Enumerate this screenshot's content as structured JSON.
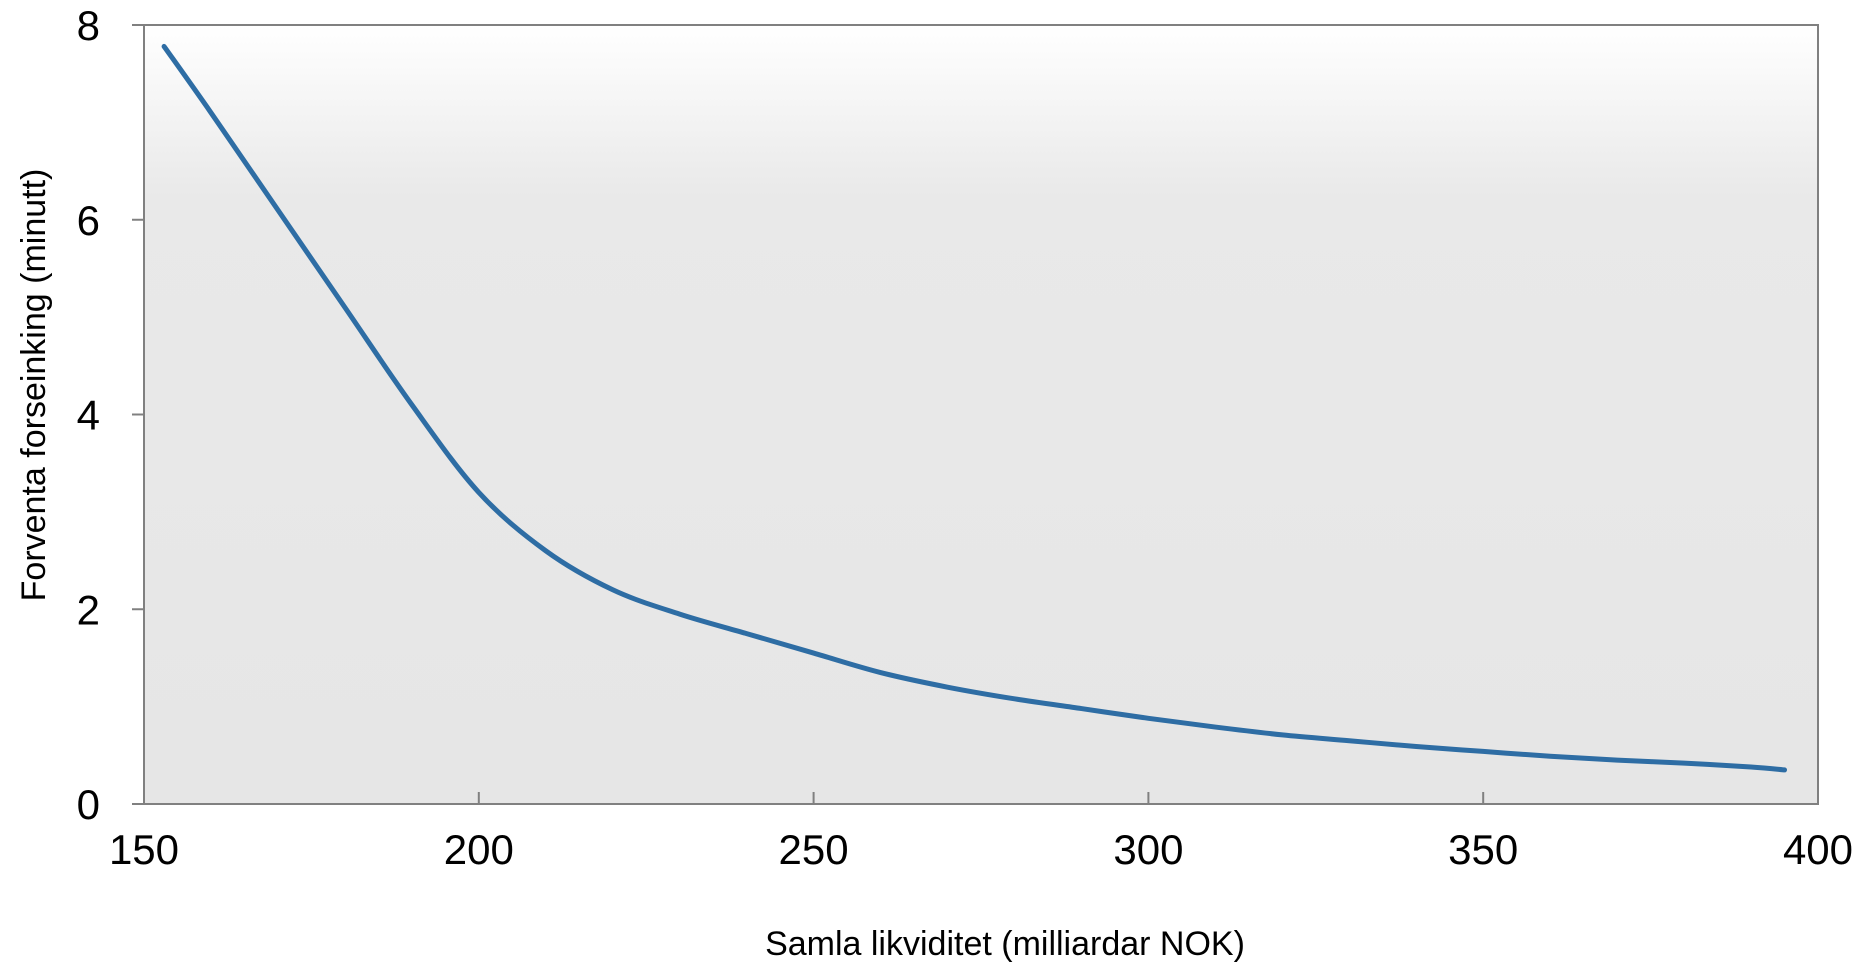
{
  "chart_data": {
    "type": "line",
    "title": "",
    "xlabel": "Samla likviditet (milliardar NOK)",
    "ylabel": "Forventa forseinking  (minutt)",
    "xlim": [
      150,
      400
    ],
    "ylim": [
      0,
      8
    ],
    "xticks": [
      150,
      200,
      250,
      300,
      350,
      400
    ],
    "yticks": [
      0,
      2,
      4,
      6,
      8
    ],
    "grid": false,
    "legend": "none",
    "background": "light-gray gradient",
    "series": [
      {
        "color": "#2E6DA4",
        "x": [
          153,
          160,
          170,
          180,
          190,
          200,
          210,
          220,
          230,
          240,
          250,
          260,
          270,
          280,
          290,
          300,
          310,
          320,
          330,
          340,
          350,
          360,
          370,
          380,
          390,
          395
        ],
        "y": [
          7.78,
          7.1,
          6.1,
          5.1,
          4.1,
          3.2,
          2.6,
          2.2,
          1.95,
          1.75,
          1.55,
          1.35,
          1.2,
          1.08,
          0.98,
          0.88,
          0.79,
          0.71,
          0.65,
          0.59,
          0.54,
          0.49,
          0.45,
          0.42,
          0.38,
          0.35
        ]
      }
    ]
  }
}
